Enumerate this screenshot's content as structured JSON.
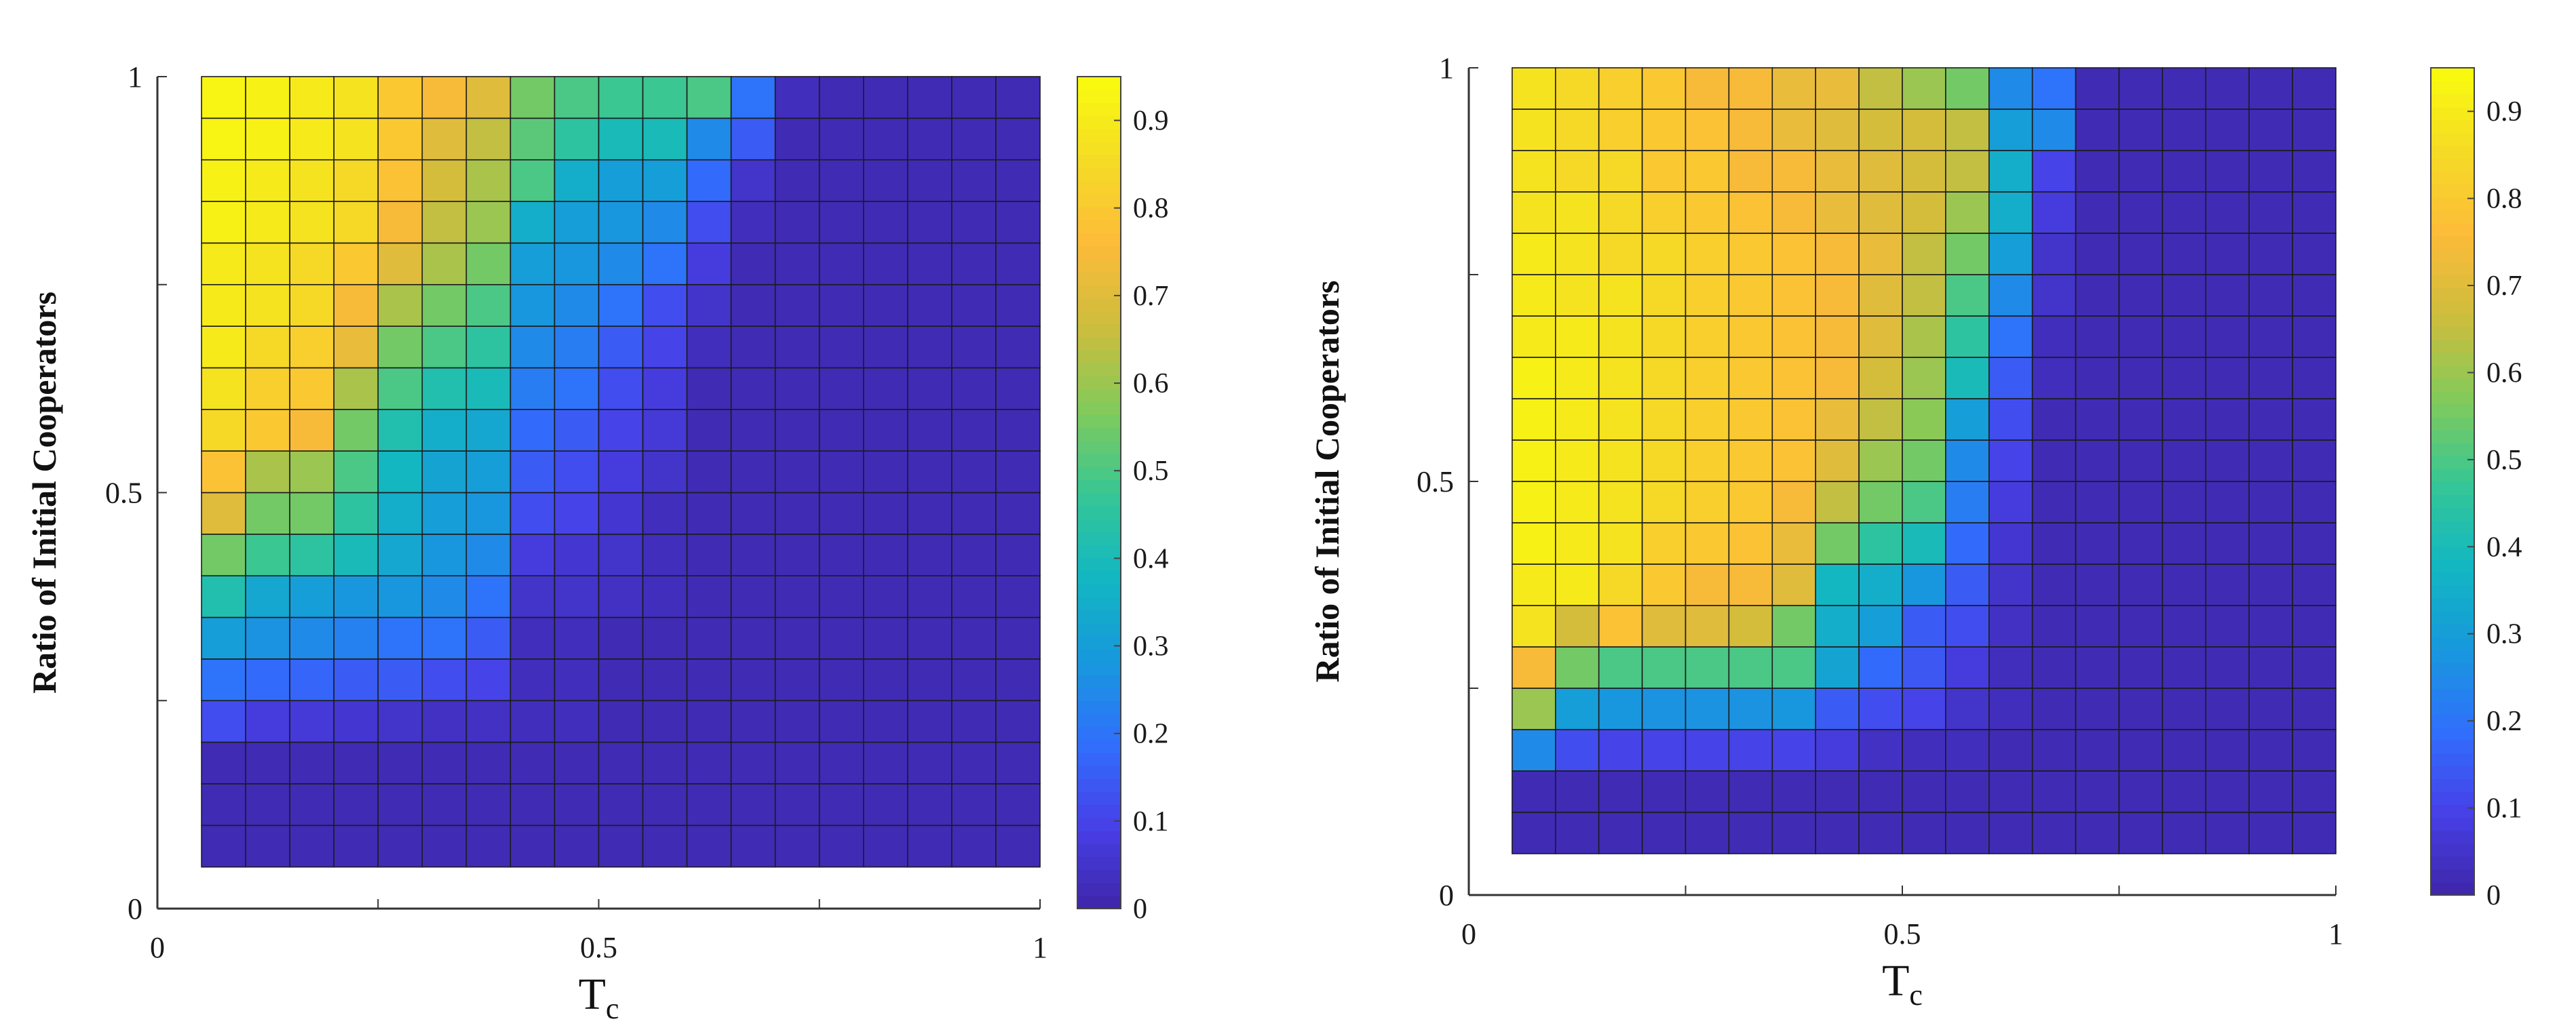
{
  "chart_data": [
    {
      "type": "heatmap",
      "title": "",
      "xlabel": "T",
      "xlabel_subscript": "c",
      "ylabel": "Ratio of Initial Cooperators",
      "xlim": [
        0,
        1
      ],
      "ylim": [
        0,
        1
      ],
      "xticks": [
        0,
        0.25,
        0.5,
        0.75,
        1
      ],
      "xtick_labels": [
        "0",
        "",
        "0.5",
        "",
        "1"
      ],
      "yticks": [
        0,
        0.25,
        0.5,
        0.75,
        1
      ],
      "ytick_labels": [
        "0",
        "",
        "0.5",
        "",
        "1"
      ],
      "grid": false,
      "cell_x": [
        0.075,
        0.125,
        0.175,
        0.225,
        0.275,
        0.325,
        0.375,
        0.425,
        0.475,
        0.525,
        0.575,
        0.625,
        0.675,
        0.725,
        0.775,
        0.825,
        0.875,
        0.925,
        0.975
      ],
      "cell_y": [
        0.075,
        0.125,
        0.175,
        0.225,
        0.275,
        0.325,
        0.375,
        0.425,
        0.475,
        0.525,
        0.575,
        0.625,
        0.675,
        0.725,
        0.775,
        0.825,
        0.875,
        0.925,
        0.975
      ],
      "values": [
        [
          0.02,
          0.02,
          0.02,
          0.02,
          0.02,
          0.02,
          0.02,
          0.02,
          0.02,
          0.02,
          0.02,
          0.02,
          0.02,
          0.02,
          0.02,
          0.02,
          0.02,
          0.02,
          0.02
        ],
        [
          0.02,
          0.02,
          0.02,
          0.02,
          0.02,
          0.02,
          0.02,
          0.02,
          0.02,
          0.02,
          0.02,
          0.02,
          0.02,
          0.02,
          0.02,
          0.02,
          0.02,
          0.02,
          0.02
        ],
        [
          0.02,
          0.02,
          0.02,
          0.02,
          0.02,
          0.02,
          0.02,
          0.02,
          0.02,
          0.02,
          0.02,
          0.02,
          0.02,
          0.02,
          0.02,
          0.02,
          0.02,
          0.02,
          0.02
        ],
        [
          0.12,
          0.08,
          0.07,
          0.06,
          0.05,
          0.04,
          0.04,
          0.03,
          0.03,
          0.02,
          0.02,
          0.02,
          0.02,
          0.02,
          0.02,
          0.02,
          0.02,
          0.02,
          0.02
        ],
        [
          0.2,
          0.18,
          0.17,
          0.15,
          0.15,
          0.12,
          0.1,
          0.03,
          0.03,
          0.02,
          0.02,
          0.02,
          0.02,
          0.02,
          0.02,
          0.02,
          0.02,
          0.02,
          0.02
        ],
        [
          0.3,
          0.27,
          0.25,
          0.23,
          0.2,
          0.2,
          0.15,
          0.03,
          0.03,
          0.02,
          0.02,
          0.02,
          0.02,
          0.02,
          0.02,
          0.02,
          0.02,
          0.02,
          0.02
        ],
        [
          0.42,
          0.33,
          0.3,
          0.28,
          0.28,
          0.25,
          0.2,
          0.05,
          0.05,
          0.04,
          0.03,
          0.02,
          0.02,
          0.02,
          0.02,
          0.02,
          0.02,
          0.02,
          0.02
        ],
        [
          0.55,
          0.48,
          0.45,
          0.4,
          0.33,
          0.28,
          0.25,
          0.08,
          0.06,
          0.05,
          0.03,
          0.02,
          0.02,
          0.02,
          0.02,
          0.02,
          0.02,
          0.02,
          0.02
        ],
        [
          0.7,
          0.55,
          0.55,
          0.45,
          0.35,
          0.3,
          0.28,
          0.12,
          0.1,
          0.06,
          0.03,
          0.02,
          0.02,
          0.02,
          0.02,
          0.02,
          0.02,
          0.02,
          0.02
        ],
        [
          0.78,
          0.62,
          0.6,
          0.5,
          0.38,
          0.32,
          0.3,
          0.15,
          0.12,
          0.08,
          0.05,
          0.02,
          0.02,
          0.02,
          0.02,
          0.02,
          0.02,
          0.02,
          0.02
        ],
        [
          0.85,
          0.8,
          0.75,
          0.55,
          0.42,
          0.35,
          0.33,
          0.18,
          0.15,
          0.1,
          0.07,
          0.02,
          0.02,
          0.02,
          0.02,
          0.02,
          0.02,
          0.02,
          0.02
        ],
        [
          0.88,
          0.82,
          0.8,
          0.62,
          0.5,
          0.42,
          0.4,
          0.22,
          0.2,
          0.12,
          0.08,
          0.02,
          0.02,
          0.02,
          0.02,
          0.02,
          0.02,
          0.02,
          0.02
        ],
        [
          0.9,
          0.85,
          0.82,
          0.72,
          0.55,
          0.5,
          0.45,
          0.25,
          0.22,
          0.15,
          0.1,
          0.03,
          0.02,
          0.02,
          0.02,
          0.02,
          0.02,
          0.02,
          0.02
        ],
        [
          0.9,
          0.88,
          0.85,
          0.75,
          0.62,
          0.55,
          0.5,
          0.28,
          0.25,
          0.2,
          0.12,
          0.05,
          0.02,
          0.02,
          0.02,
          0.02,
          0.02,
          0.02,
          0.02
        ],
        [
          0.9,
          0.88,
          0.85,
          0.8,
          0.7,
          0.62,
          0.55,
          0.3,
          0.28,
          0.25,
          0.2,
          0.08,
          0.02,
          0.02,
          0.02,
          0.02,
          0.02,
          0.02,
          0.02
        ],
        [
          0.92,
          0.9,
          0.88,
          0.85,
          0.75,
          0.65,
          0.6,
          0.35,
          0.3,
          0.28,
          0.25,
          0.12,
          0.03,
          0.02,
          0.02,
          0.02,
          0.02,
          0.02,
          0.02
        ],
        [
          0.92,
          0.9,
          0.88,
          0.85,
          0.78,
          0.68,
          0.62,
          0.5,
          0.35,
          0.3,
          0.3,
          0.18,
          0.05,
          0.02,
          0.02,
          0.02,
          0.02,
          0.02,
          0.02
        ],
        [
          0.93,
          0.92,
          0.9,
          0.88,
          0.8,
          0.7,
          0.65,
          0.52,
          0.45,
          0.4,
          0.4,
          0.25,
          0.15,
          0.02,
          0.02,
          0.02,
          0.02,
          0.02,
          0.02
        ],
        [
          0.93,
          0.92,
          0.9,
          0.88,
          0.8,
          0.75,
          0.7,
          0.55,
          0.5,
          0.48,
          0.48,
          0.5,
          0.2,
          0.03,
          0.02,
          0.02,
          0.02,
          0.02,
          0.02
        ]
      ],
      "colorbar": {
        "min": 0,
        "max": 0.95,
        "ticks": [
          0,
          0.1,
          0.2,
          0.3,
          0.4,
          0.5,
          0.6,
          0.7,
          0.8,
          0.9
        ],
        "tick_labels": [
          "0",
          "0.1",
          "0.2",
          "0.3",
          "0.4",
          "0.5",
          "0.6",
          "0.7",
          "0.8",
          "0.9"
        ],
        "colormap": "parula",
        "placement": "right"
      }
    },
    {
      "type": "heatmap",
      "title": "",
      "xlabel": "T",
      "xlabel_subscript": "c",
      "ylabel": "Ratio of Initial Cooperators",
      "xlim": [
        0,
        1
      ],
      "ylim": [
        0,
        1
      ],
      "xticks": [
        0,
        0.25,
        0.5,
        0.75,
        1
      ],
      "xtick_labels": [
        "0",
        "",
        "0.5",
        "",
        "1"
      ],
      "yticks": [
        0,
        0.25,
        0.5,
        0.75,
        1
      ],
      "ytick_labels": [
        "0",
        "",
        "0.5",
        "",
        "1"
      ],
      "grid": false,
      "cell_x": [
        0.075,
        0.125,
        0.175,
        0.225,
        0.275,
        0.325,
        0.375,
        0.425,
        0.475,
        0.525,
        0.575,
        0.625,
        0.675,
        0.725,
        0.775,
        0.825,
        0.875,
        0.925,
        0.975
      ],
      "cell_y": [
        0.075,
        0.125,
        0.175,
        0.225,
        0.275,
        0.325,
        0.375,
        0.425,
        0.475,
        0.525,
        0.575,
        0.625,
        0.675,
        0.725,
        0.775,
        0.825,
        0.875,
        0.925,
        0.975
      ],
      "values": [
        [
          0.02,
          0.02,
          0.02,
          0.02,
          0.02,
          0.02,
          0.02,
          0.02,
          0.02,
          0.02,
          0.02,
          0.02,
          0.02,
          0.02,
          0.02,
          0.02,
          0.02,
          0.02,
          0.02
        ],
        [
          0.02,
          0.02,
          0.02,
          0.02,
          0.02,
          0.02,
          0.02,
          0.02,
          0.02,
          0.02,
          0.02,
          0.02,
          0.02,
          0.02,
          0.02,
          0.02,
          0.02,
          0.02,
          0.02
        ],
        [
          0.25,
          0.12,
          0.1,
          0.1,
          0.1,
          0.1,
          0.1,
          0.08,
          0.04,
          0.03,
          0.03,
          0.02,
          0.02,
          0.02,
          0.02,
          0.02,
          0.02,
          0.02,
          0.02
        ],
        [
          0.6,
          0.3,
          0.28,
          0.27,
          0.27,
          0.27,
          0.28,
          0.15,
          0.12,
          0.1,
          0.05,
          0.03,
          0.02,
          0.02,
          0.02,
          0.02,
          0.02,
          0.02,
          0.02
        ],
        [
          0.75,
          0.55,
          0.5,
          0.5,
          0.5,
          0.5,
          0.5,
          0.32,
          0.18,
          0.14,
          0.08,
          0.03,
          0.02,
          0.02,
          0.02,
          0.02,
          0.02,
          0.02,
          0.02
        ],
        [
          0.88,
          0.68,
          0.78,
          0.7,
          0.7,
          0.68,
          0.55,
          0.35,
          0.3,
          0.15,
          0.12,
          0.04,
          0.02,
          0.02,
          0.02,
          0.02,
          0.02,
          0.02,
          0.02
        ],
        [
          0.9,
          0.9,
          0.85,
          0.8,
          0.75,
          0.75,
          0.7,
          0.38,
          0.35,
          0.28,
          0.15,
          0.05,
          0.02,
          0.02,
          0.02,
          0.02,
          0.02,
          0.02,
          0.02
        ],
        [
          0.92,
          0.9,
          0.88,
          0.82,
          0.8,
          0.78,
          0.72,
          0.55,
          0.45,
          0.4,
          0.18,
          0.06,
          0.02,
          0.02,
          0.02,
          0.02,
          0.02,
          0.02,
          0.02
        ],
        [
          0.92,
          0.9,
          0.88,
          0.85,
          0.82,
          0.8,
          0.75,
          0.65,
          0.55,
          0.5,
          0.22,
          0.08,
          0.02,
          0.02,
          0.02,
          0.02,
          0.02,
          0.02,
          0.02
        ],
        [
          0.92,
          0.9,
          0.88,
          0.85,
          0.82,
          0.8,
          0.78,
          0.7,
          0.6,
          0.55,
          0.25,
          0.1,
          0.02,
          0.02,
          0.02,
          0.02,
          0.02,
          0.02,
          0.02
        ],
        [
          0.92,
          0.9,
          0.88,
          0.85,
          0.82,
          0.8,
          0.78,
          0.72,
          0.65,
          0.58,
          0.3,
          0.12,
          0.02,
          0.02,
          0.02,
          0.02,
          0.02,
          0.02,
          0.02
        ],
        [
          0.92,
          0.9,
          0.88,
          0.85,
          0.82,
          0.8,
          0.78,
          0.75,
          0.68,
          0.6,
          0.4,
          0.15,
          0.03,
          0.02,
          0.02,
          0.02,
          0.02,
          0.02,
          0.02
        ],
        [
          0.9,
          0.9,
          0.88,
          0.85,
          0.82,
          0.8,
          0.78,
          0.75,
          0.7,
          0.62,
          0.45,
          0.2,
          0.03,
          0.02,
          0.02,
          0.02,
          0.02,
          0.02,
          0.02
        ],
        [
          0.9,
          0.88,
          0.88,
          0.85,
          0.82,
          0.8,
          0.78,
          0.75,
          0.7,
          0.65,
          0.5,
          0.25,
          0.05,
          0.02,
          0.02,
          0.02,
          0.02,
          0.02,
          0.02
        ],
        [
          0.9,
          0.88,
          0.85,
          0.85,
          0.82,
          0.8,
          0.78,
          0.75,
          0.72,
          0.65,
          0.55,
          0.3,
          0.05,
          0.02,
          0.02,
          0.02,
          0.02,
          0.02,
          0.02
        ],
        [
          0.88,
          0.88,
          0.85,
          0.82,
          0.8,
          0.78,
          0.75,
          0.72,
          0.7,
          0.68,
          0.6,
          0.35,
          0.08,
          0.02,
          0.02,
          0.02,
          0.02,
          0.02,
          0.02
        ],
        [
          0.88,
          0.85,
          0.85,
          0.8,
          0.8,
          0.75,
          0.75,
          0.72,
          0.7,
          0.68,
          0.65,
          0.35,
          0.1,
          0.02,
          0.02,
          0.02,
          0.02,
          0.02,
          0.02
        ],
        [
          0.88,
          0.85,
          0.82,
          0.8,
          0.78,
          0.75,
          0.72,
          0.7,
          0.68,
          0.68,
          0.65,
          0.3,
          0.25,
          0.02,
          0.02,
          0.02,
          0.02,
          0.02,
          0.02
        ],
        [
          0.88,
          0.85,
          0.82,
          0.8,
          0.75,
          0.75,
          0.72,
          0.72,
          0.65,
          0.6,
          0.55,
          0.25,
          0.2,
          0.02,
          0.02,
          0.02,
          0.02,
          0.02,
          0.02
        ]
      ],
      "colorbar": {
        "min": 0,
        "max": 0.95,
        "ticks": [
          0,
          0.1,
          0.2,
          0.3,
          0.4,
          0.5,
          0.6,
          0.7,
          0.8,
          0.9
        ],
        "tick_labels": [
          "0",
          "0.1",
          "0.2",
          "0.3",
          "0.4",
          "0.5",
          "0.6",
          "0.7",
          "0.8",
          "0.9"
        ],
        "colormap": "parula",
        "placement": "right"
      }
    }
  ]
}
